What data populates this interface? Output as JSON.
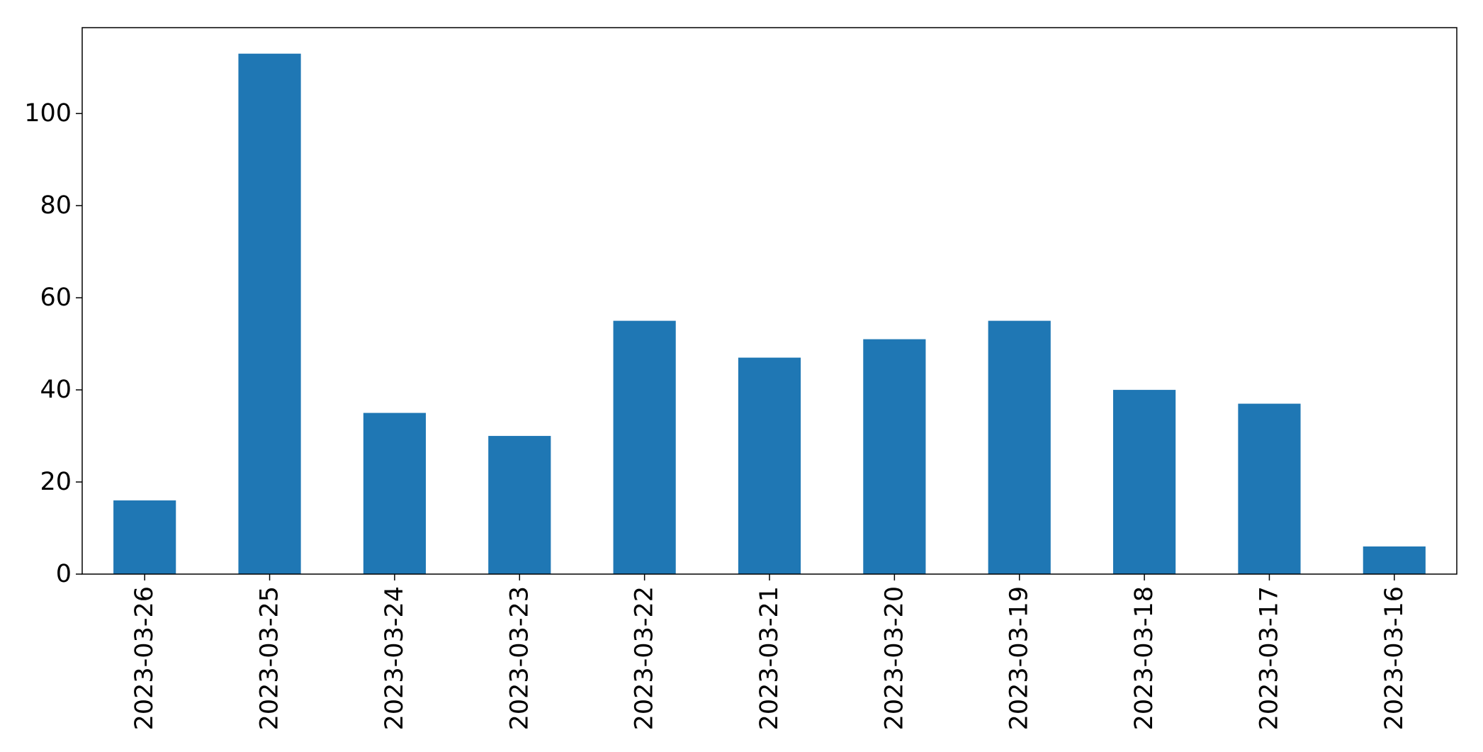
{
  "chart_data": {
    "type": "bar",
    "categories": [
      "2023-03-26",
      "2023-03-25",
      "2023-03-24",
      "2023-03-23",
      "2023-03-22",
      "2023-03-21",
      "2023-03-20",
      "2023-03-19",
      "2023-03-18",
      "2023-03-17",
      "2023-03-16"
    ],
    "values": [
      16,
      113,
      35,
      30,
      55,
      47,
      51,
      55,
      40,
      37,
      6
    ],
    "yticks": [
      0,
      20,
      40,
      60,
      80,
      100
    ],
    "ylim": [
      0,
      118.65
    ],
    "bar_color": "#1f77b4",
    "grid": false,
    "legend": "none",
    "title": "",
    "xlabel": "",
    "ylabel": ""
  }
}
